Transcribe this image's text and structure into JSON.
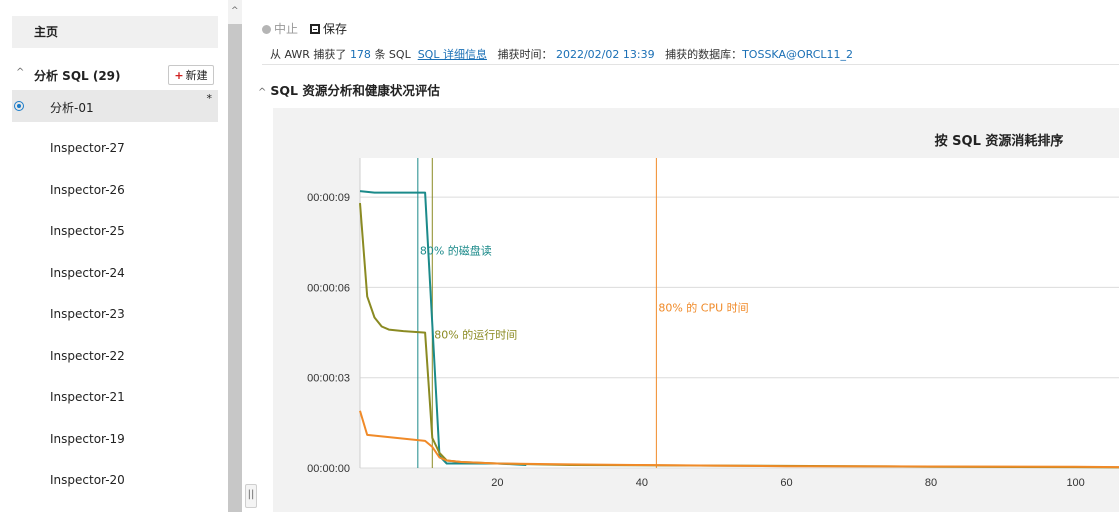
{
  "sidebar": {
    "home_label": "主页",
    "analysis_header": "分析 SQL (29)",
    "new_button": {
      "icon": "plus-icon",
      "label": "新建"
    },
    "selected_item": {
      "label": "分析-01",
      "marker": "*"
    },
    "items": [
      "Inspector-27",
      "Inspector-26",
      "Inspector-25",
      "Inspector-24",
      "Inspector-23",
      "Inspector-22",
      "Inspector-21",
      "Inspector-19",
      "Inspector-20"
    ]
  },
  "toolbar": {
    "stop_label": "中止",
    "save_label": "保存"
  },
  "info": {
    "prefix": "从 AWR 捕获了",
    "count": "178",
    "suffix": "条 SQL",
    "details_link": "SQL 详细信息",
    "capture_time_label": "捕获时间：",
    "capture_time": "2022/02/02 13:39",
    "db_label": "捕获的数据库：",
    "db": "TOSSKA@ORCL11_2"
  },
  "section": {
    "title": "SQL 资源分析和健康状况评估"
  },
  "colors": {
    "teal": "#1b8a8a",
    "olive": "#8a8a22",
    "orange": "#f08a28",
    "link": "#1a6fb5"
  },
  "chart_data": {
    "type": "line",
    "title": "按 SQL 资源消耗排序",
    "x_ticks": [
      20,
      40,
      60,
      80,
      100
    ],
    "y_ticks": [
      "00:00:00",
      "00:00:03",
      "00:00:06",
      "00:00:09"
    ],
    "xlim": [
      1,
      106
    ],
    "ylim_seconds": [
      0,
      10.3
    ],
    "series": [
      {
        "color": "#1b8a8a",
        "x": [
          1,
          3,
          5,
          10,
          12,
          13,
          16,
          20,
          24
        ],
        "y": [
          9.2,
          9.15,
          9.15,
          9.15,
          0.4,
          0.15,
          0.15,
          0.15,
          0.1
        ]
      },
      {
        "color": "#8a8a22",
        "x": [
          1,
          2,
          3,
          4,
          5,
          7,
          10,
          11,
          12,
          13,
          15,
          20,
          30,
          50,
          70,
          76,
          80,
          100,
          106
        ],
        "y": [
          8.8,
          5.7,
          5.0,
          4.7,
          4.6,
          4.55,
          4.5,
          1.0,
          0.5,
          0.25,
          0.2,
          0.15,
          0.1,
          0.08,
          0.06,
          0.05,
          0.04,
          0.03,
          0.02
        ]
      },
      {
        "color": "#f08a28",
        "x": [
          1,
          2,
          4,
          6,
          8,
          10,
          11,
          12,
          13,
          15,
          20,
          30,
          40,
          50,
          60,
          80,
          100,
          106
        ],
        "y": [
          1.9,
          1.1,
          1.05,
          1.0,
          0.95,
          0.9,
          0.7,
          0.35,
          0.25,
          0.2,
          0.15,
          0.12,
          0.1,
          0.08,
          0.06,
          0.05,
          0.04,
          0.03
        ]
      }
    ],
    "markers": [
      {
        "x": 9,
        "label": "80% 的磁盘读",
        "color": "#1b8a8a",
        "label_y": 7.1
      },
      {
        "x": 11,
        "label": "80% 的运行时间",
        "color": "#8a8a22",
        "label_y": 4.3
      },
      {
        "x": 42,
        "label": "80% 的 CPU 时间",
        "color": "#f08a28",
        "label_y": 5.2
      }
    ]
  }
}
